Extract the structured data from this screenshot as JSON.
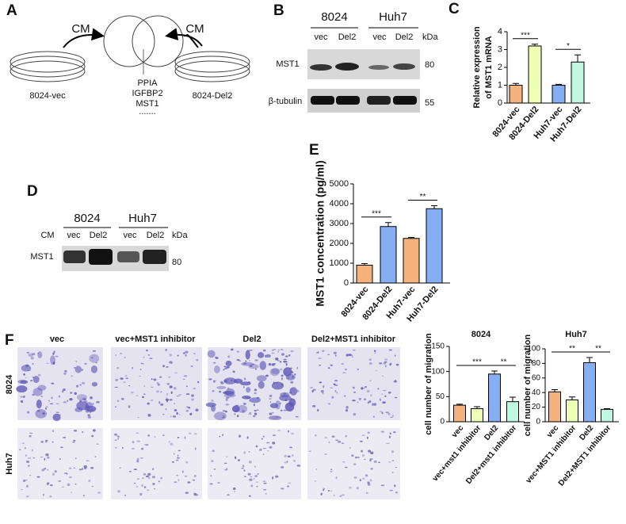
{
  "panel_labels": [
    "A",
    "B",
    "C",
    "D",
    "E",
    "F"
  ],
  "panel_a": {
    "left_arrow_label": "CM",
    "right_arrow_label": "CM",
    "left_dish": "8024-vec",
    "right_dish": "8024-Del2",
    "proteins": [
      "PPIA",
      "IGFBP2",
      "MST1",
      "......."
    ]
  },
  "panel_b": {
    "cell_lines": [
      "8024",
      "Huh7"
    ],
    "lanes": [
      "vec",
      "Del2",
      "vec",
      "Del2"
    ],
    "unit": "kDa",
    "rows": [
      {
        "label": "MST1",
        "size": 80
      },
      {
        "label": "β-tubulin",
        "size": 55
      }
    ]
  },
  "panel_d": {
    "cell_lines": [
      "8024",
      "Huh7"
    ],
    "sample": "CM",
    "lanes": [
      "vec",
      "Del2",
      "vec",
      "Del2"
    ],
    "unit": "kDa",
    "rows": [
      {
        "label": "MST1",
        "size": 80
      }
    ]
  },
  "panel_f_images": {
    "columns": [
      "vec",
      "vec+MST1 inhibitor",
      "Del2",
      "Del2+MST1 inhibitor"
    ],
    "rows": [
      "8024",
      "Huh7"
    ]
  },
  "chart_data": [
    {
      "type": "bar",
      "y_label": [
        "Relative  expression",
        "of MST1 mRNA"
      ],
      "categories": [
        "8024-vec",
        "8024-Del2",
        "Huh7-vec",
        "Huh7-Del2"
      ],
      "values": [
        1.0,
        3.2,
        1.0,
        2.3
      ],
      "errors": [
        0.1,
        0.1,
        0.05,
        0.4
      ],
      "colors": [
        "#f6b27c",
        "#ecffb4",
        "#86aef2",
        "#bff7e2"
      ],
      "ylim": [
        0,
        4
      ],
      "yticks": [
        0,
        1,
        2,
        3,
        4
      ],
      "annotations": [
        "***",
        "*"
      ]
    },
    {
      "type": "bar",
      "y_label": [
        "MST1 concentration (pg/ml)"
      ],
      "categories": [
        "8024-vec",
        "8024-Del2",
        "Huh7-vec",
        "Huh7-Del2"
      ],
      "values": [
        900,
        2850,
        2250,
        3750
      ],
      "errors": [
        80,
        200,
        50,
        150
      ],
      "colors": [
        "#f6b27c",
        "#86aef2",
        "#f6b27c",
        "#86aef2"
      ],
      "ylim": [
        0,
        5000
      ],
      "yticks": [
        0,
        1000,
        2000,
        3000,
        4000,
        5000
      ],
      "annotations": [
        "***",
        "**"
      ]
    },
    {
      "type": "bar",
      "title": "8024",
      "y_label": [
        "cell number of migration"
      ],
      "categories": [
        "vec",
        "vec+mst1 inhibitor",
        "Del2",
        "Del2+mst1 inhibitor"
      ],
      "values": [
        33,
        26,
        95,
        40
      ],
      "errors": [
        2,
        4,
        6,
        9
      ],
      "colors": [
        "#f6b27c",
        "#ecffb4",
        "#86aef2",
        "#bff7e2"
      ],
      "ylim": [
        0,
        150
      ],
      "yticks": [
        0,
        50,
        100,
        150
      ],
      "annotations": [
        "***",
        "**"
      ]
    },
    {
      "type": "bar",
      "title": "Huh7",
      "y_label": [
        "cell number of migration"
      ],
      "categories": [
        "vec",
        "vec+MST1 inhibitor",
        "Del2",
        "Del2+MST1 inhibitor"
      ],
      "values": [
        41,
        30,
        81,
        17
      ],
      "errors": [
        3,
        4,
        7,
        1
      ],
      "colors": [
        "#f6b27c",
        "#ecffb4",
        "#86aef2",
        "#bff7e2"
      ],
      "ylim": [
        0,
        100
      ],
      "yticks": [
        0,
        20,
        40,
        60,
        80,
        100
      ],
      "annotations": [
        "**",
        "**"
      ]
    }
  ]
}
